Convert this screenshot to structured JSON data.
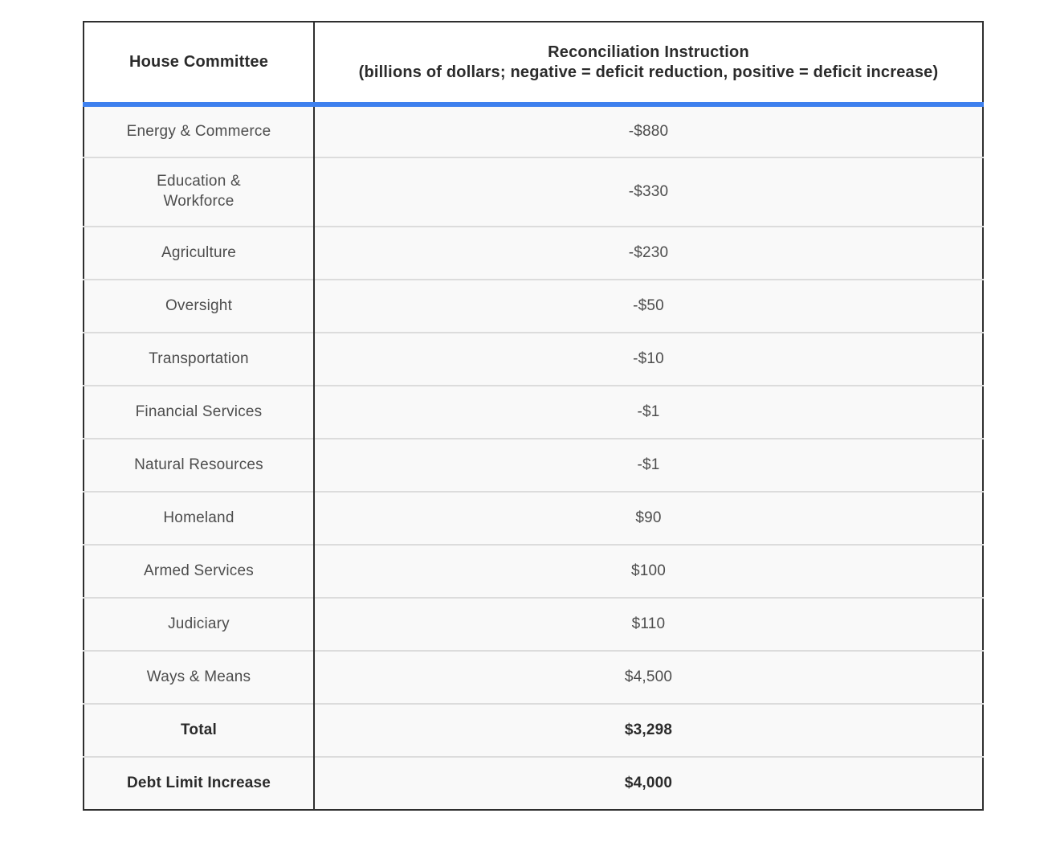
{
  "table": {
    "header": {
      "committee_label": "House Committee",
      "instruction_title": "Reconciliation Instruction",
      "instruction_subtitle": "(billions of dollars; negative = deficit reduction, positive = deficit increase)"
    },
    "rows": [
      {
        "committee": "Energy & Commerce",
        "instruction": "-$880",
        "bold": false,
        "tall": false
      },
      {
        "committee": "Education & Workforce",
        "instruction": "-$330",
        "bold": false,
        "tall": true
      },
      {
        "committee": "Agriculture",
        "instruction": "-$230",
        "bold": false,
        "tall": false
      },
      {
        "committee": "Oversight",
        "instruction": "-$50",
        "bold": false,
        "tall": false
      },
      {
        "committee": "Transportation",
        "instruction": "-$10",
        "bold": false,
        "tall": false
      },
      {
        "committee": "Financial Services",
        "instruction": "-$1",
        "bold": false,
        "tall": false
      },
      {
        "committee": "Natural Resources",
        "instruction": "-$1",
        "bold": false,
        "tall": false
      },
      {
        "committee": "Homeland",
        "instruction": "$90",
        "bold": false,
        "tall": false
      },
      {
        "committee": "Armed Services",
        "instruction": "$100",
        "bold": false,
        "tall": false
      },
      {
        "committee": "Judiciary",
        "instruction": "$110",
        "bold": false,
        "tall": false
      },
      {
        "committee": "Ways & Means",
        "instruction": "$4,500",
        "bold": false,
        "tall": false
      },
      {
        "committee": "Total",
        "instruction": "$3,298",
        "bold": true,
        "tall": false
      },
      {
        "committee": "Debt Limit Increase",
        "instruction": "$4,000",
        "bold": true,
        "tall": false
      }
    ],
    "colors": {
      "accent_blue": "#3e80ee",
      "outer_border": "#2e2e2e",
      "row_divider": "#dcdcdc",
      "row_background": "#f9f9f9",
      "header_background": "#ffffff",
      "text_regular": "#4d4d4d",
      "text_bold": "#2b2b2b"
    }
  },
  "chart_data": {
    "type": "table",
    "title": "Reconciliation Instruction by House Committee",
    "columns": [
      "House Committee",
      "Reconciliation Instruction (billions of dollars; negative = deficit reduction, positive = deficit increase)"
    ],
    "units": "billions of dollars",
    "rows": [
      [
        "Energy & Commerce",
        -880
      ],
      [
        "Education & Workforce",
        -330
      ],
      [
        "Agriculture",
        -230
      ],
      [
        "Oversight",
        -50
      ],
      [
        "Transportation",
        -10
      ],
      [
        "Financial Services",
        -1
      ],
      [
        "Natural Resources",
        -1
      ],
      [
        "Homeland",
        90
      ],
      [
        "Armed Services",
        100
      ],
      [
        "Judiciary",
        110
      ],
      [
        "Ways & Means",
        4500
      ],
      [
        "Total",
        3298
      ],
      [
        "Debt Limit Increase",
        4000
      ]
    ]
  }
}
